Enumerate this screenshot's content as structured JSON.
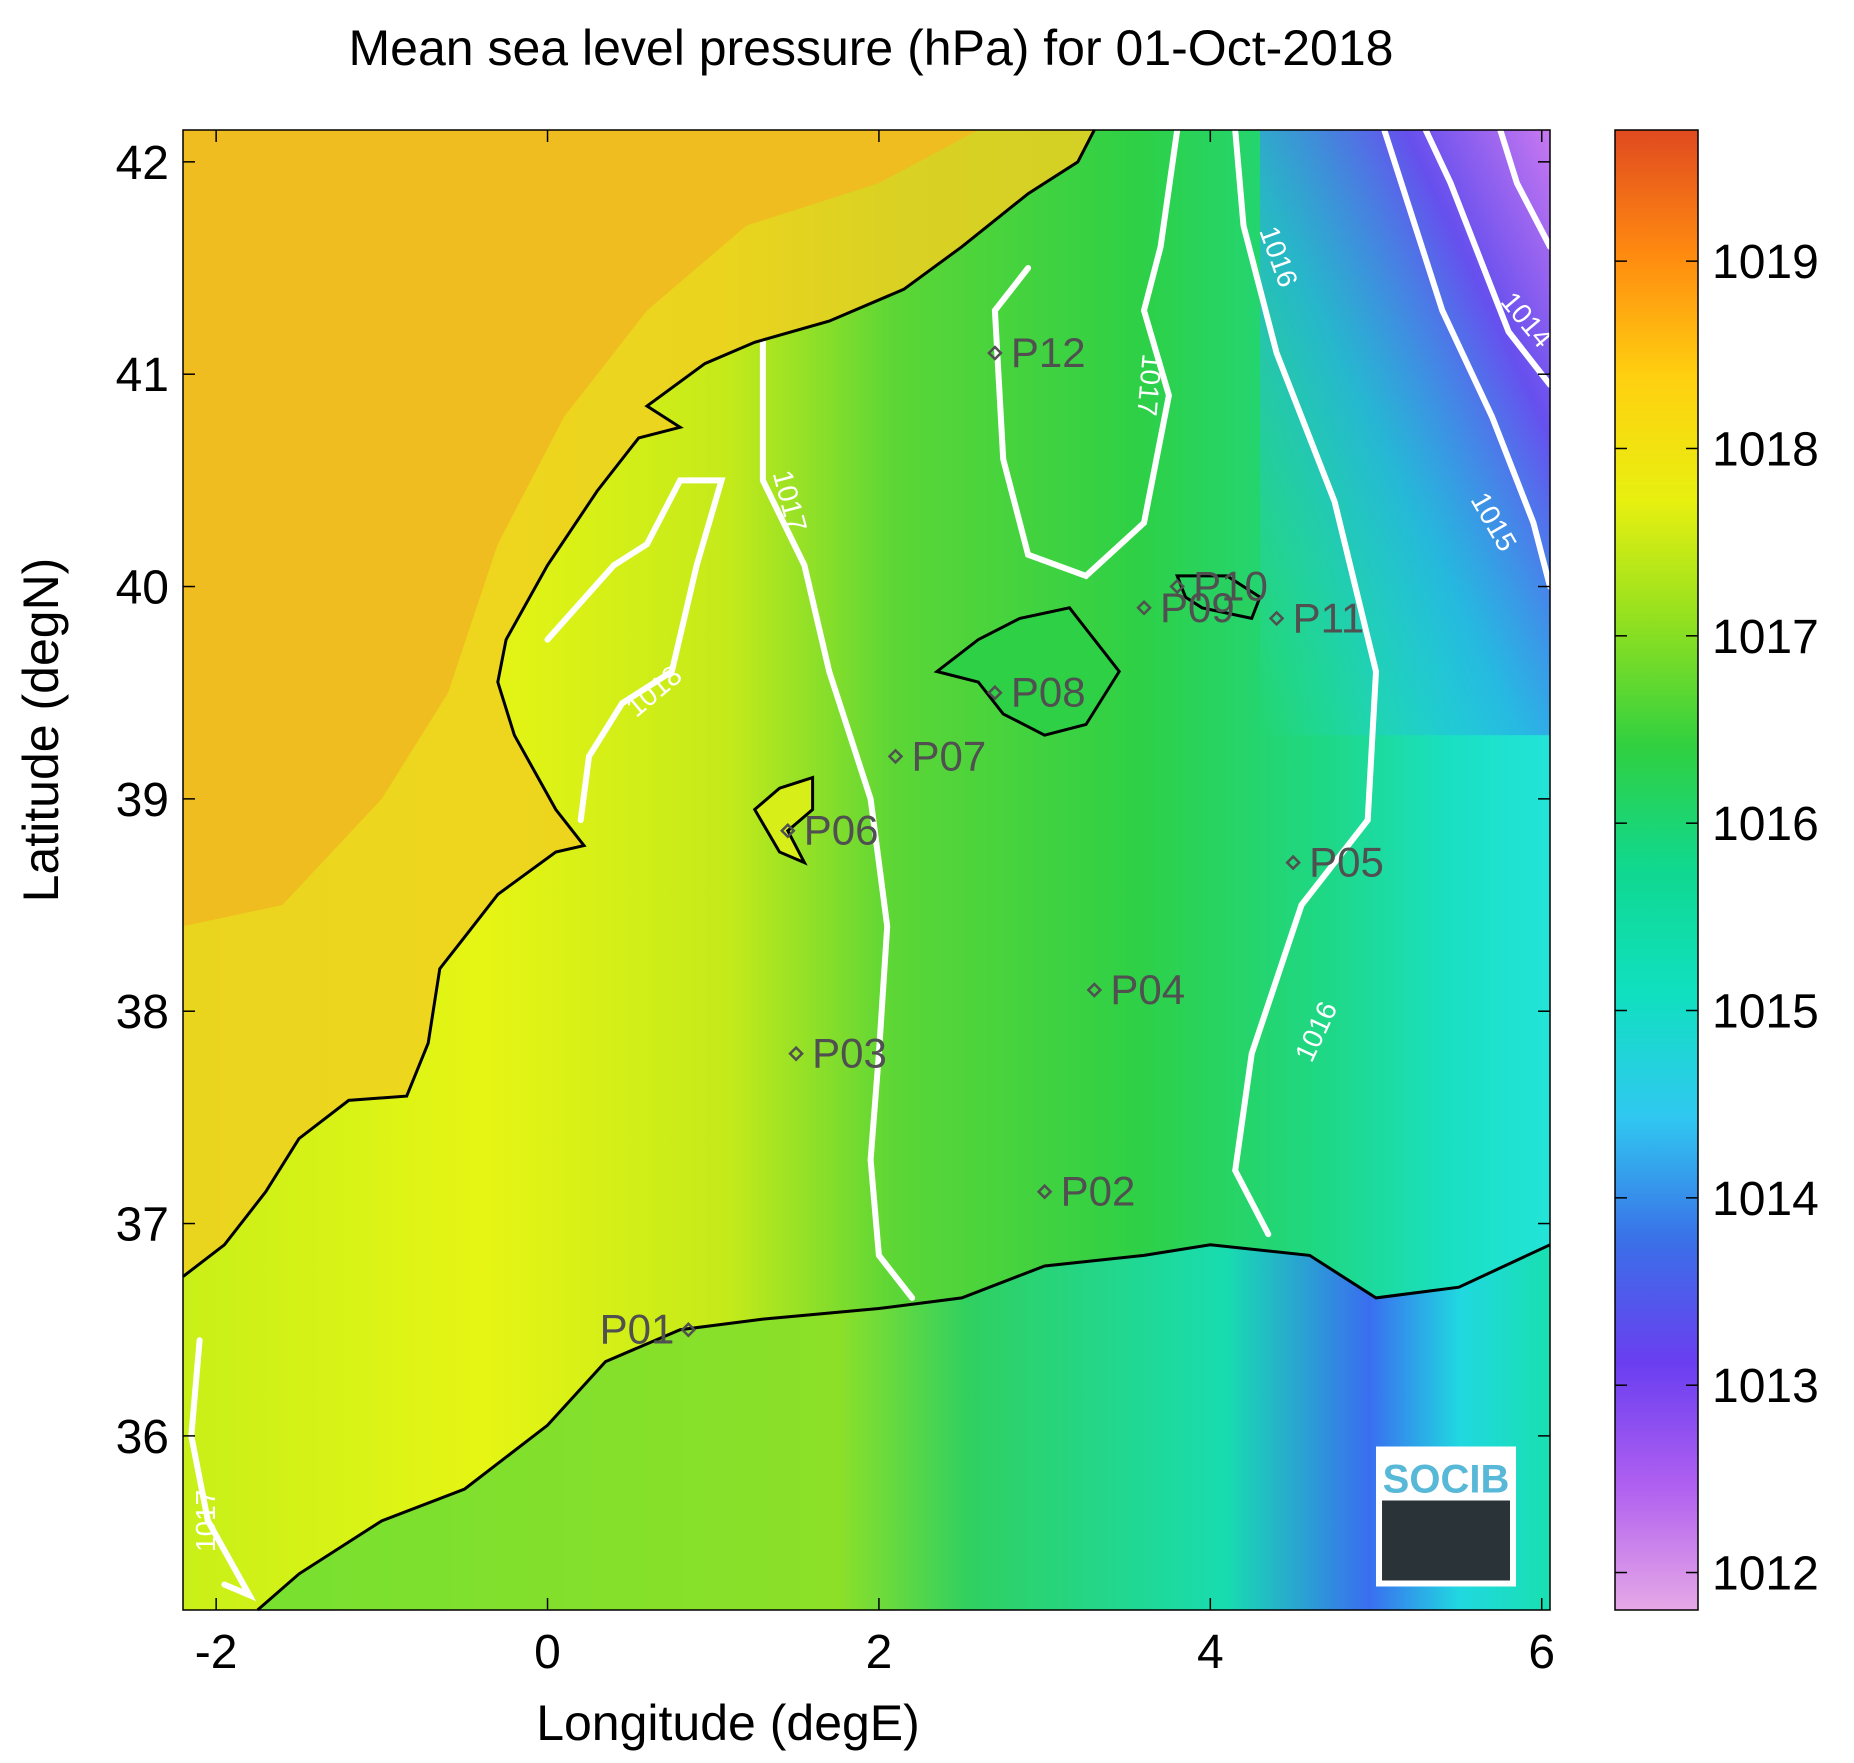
{
  "title": "Mean sea level pressure (hPa) for 01-Oct-2018",
  "xlabel": "Longitude (degE)",
  "ylabel": "Latitude (degN)",
  "x_ticks": [
    "-2",
    "0",
    "2",
    "4",
    "6"
  ],
  "y_ticks": [
    "36",
    "37",
    "38",
    "39",
    "40",
    "41",
    "42"
  ],
  "colorbar": {
    "ticks": [
      "1012",
      "1013",
      "1014",
      "1015",
      "1016",
      "1017",
      "1018",
      "1019"
    ],
    "range": [
      1011.8,
      1019.7
    ],
    "colors": [
      "#e6a8e6",
      "#b060f0",
      "#6a3ef0",
      "#3a70e8",
      "#30c8f0",
      "#10e0c0",
      "#10d890",
      "#30d040",
      "#90e020",
      "#e8f010",
      "#ffd010",
      "#ff8a10",
      "#e04a20"
    ]
  },
  "contour_labels": [
    "1014",
    "1015",
    "1016",
    "1016",
    "1017",
    "1017",
    "1018",
    "1017"
  ],
  "stations": [
    {
      "id": "P01",
      "lon": 0.85,
      "lat": 36.5
    },
    {
      "id": "P02",
      "lon": 3.0,
      "lat": 37.15
    },
    {
      "id": "P03",
      "lon": 1.5,
      "lat": 37.8
    },
    {
      "id": "P04",
      "lon": 3.3,
      "lat": 38.1
    },
    {
      "id": "P05",
      "lon": 4.5,
      "lat": 38.7
    },
    {
      "id": "P06",
      "lon": 1.45,
      "lat": 38.85
    },
    {
      "id": "P07",
      "lon": 2.1,
      "lat": 39.2
    },
    {
      "id": "P08",
      "lon": 2.7,
      "lat": 39.5
    },
    {
      "id": "P09",
      "lon": 3.6,
      "lat": 39.9
    },
    {
      "id": "P10",
      "lon": 3.8,
      "lat": 40.0
    },
    {
      "id": "P11",
      "lon": 4.4,
      "lat": 39.85
    },
    {
      "id": "P12",
      "lon": 2.7,
      "lat": 41.1
    }
  ],
  "logo_text": "SOCIB"
}
